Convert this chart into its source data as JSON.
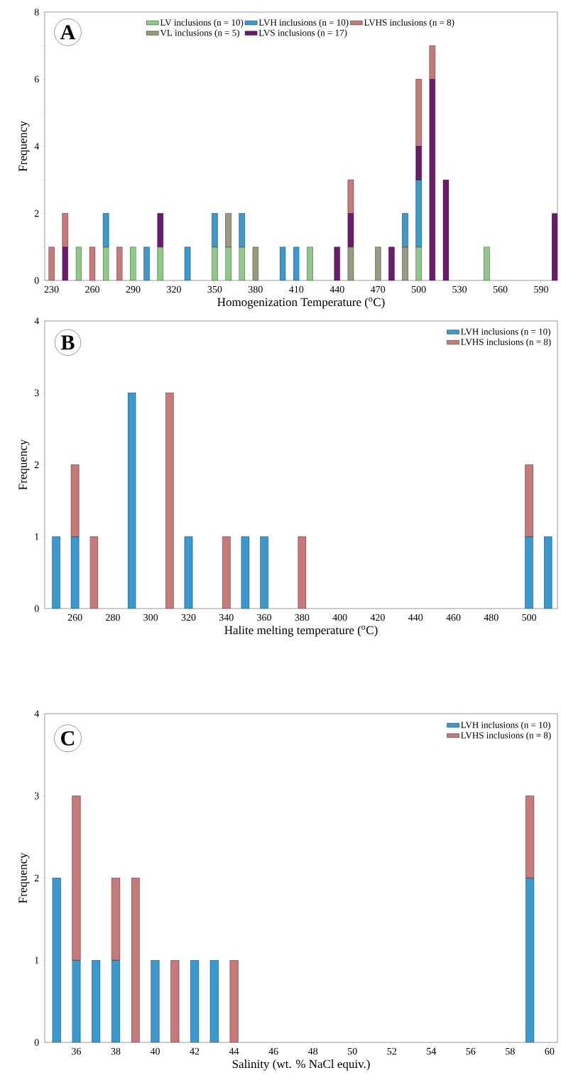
{
  "chart_data": [
    {
      "type": "bar",
      "stacked": true,
      "annotations": [
        "A"
      ],
      "xlabel": "Homogenization Temperature ($^{o}$C)",
      "ylabel": "Frequency",
      "legend": "top",
      "x": [
        230,
        240,
        250,
        260,
        270,
        280,
        290,
        300,
        310,
        330,
        350,
        360,
        370,
        380,
        400,
        410,
        420,
        440,
        450,
        470,
        480,
        490,
        500,
        510,
        520,
        550,
        600
      ],
      "xlim": [
        225,
        602
      ],
      "xticks": [
        230,
        260,
        290,
        320,
        350,
        380,
        410,
        440,
        470,
        500,
        530,
        560,
        590
      ],
      "ylim": [
        0,
        8
      ],
      "yticks": [
        0,
        {
          "value": 1,
          "label": null
        },
        2,
        {
          "value": 3,
          "label": null
        },
        4,
        {
          "value": 5,
          "label": null
        },
        6,
        {
          "value": 7,
          "label": null
        },
        8
      ],
      "series": [
        {
          "name": "LV inclusions (n = 10)",
          "color": "#8fc98a",
          "values": [
            null,
            null,
            1,
            null,
            1,
            null,
            1,
            null,
            1,
            null,
            1,
            1,
            1,
            null,
            null,
            null,
            1,
            null,
            null,
            null,
            null,
            null,
            1,
            null,
            null,
            1,
            null
          ]
        },
        {
          "name": "VL inclusions (n = 5)",
          "color": "#9a9a80",
          "values": [
            null,
            null,
            null,
            null,
            null,
            null,
            null,
            null,
            null,
            null,
            null,
            1,
            null,
            1,
            null,
            null,
            null,
            null,
            1,
            1,
            null,
            1,
            null,
            null,
            null,
            null,
            null
          ]
        },
        {
          "name": "LVH inclusions (n = 10)",
          "color": "#3a9ad0",
          "values": [
            null,
            null,
            null,
            null,
            1,
            null,
            null,
            1,
            null,
            1,
            1,
            null,
            1,
            null,
            1,
            1,
            null,
            null,
            null,
            null,
            null,
            1,
            2,
            null,
            null,
            null,
            null
          ]
        },
        {
          "name": "LVS inclusions (n = 17)",
          "color": "#6a1b6e",
          "values": [
            null,
            1,
            null,
            null,
            null,
            null,
            null,
            null,
            1,
            null,
            null,
            null,
            null,
            null,
            null,
            null,
            null,
            1,
            1,
            null,
            1,
            null,
            1,
            6,
            3,
            null,
            2
          ]
        },
        {
          "name": "LVHS inclusions (n = 8)",
          "color": "#c87a7a",
          "values": [
            1,
            1,
            null,
            1,
            null,
            1,
            null,
            null,
            null,
            null,
            null,
            null,
            null,
            null,
            null,
            null,
            null,
            null,
            1,
            null,
            null,
            null,
            2,
            1,
            null,
            null,
            null
          ]
        }
      ]
    },
    {
      "type": "bar",
      "stacked": true,
      "annotations": [
        "B"
      ],
      "xlabel": "Halite melting temperature ($^{o}$C)",
      "ylabel": "Frequency",
      "legend": "top right",
      "x": [
        250,
        260,
        270,
        290,
        310,
        320,
        340,
        350,
        360,
        380,
        500,
        510
      ],
      "xlim": [
        244,
        515
      ],
      "xticks": [
        260,
        280,
        300,
        320,
        340,
        360,
        380,
        400,
        420,
        440,
        460,
        480,
        500
      ],
      "ylim": [
        0,
        4
      ],
      "yticks": [
        0,
        1,
        2,
        3,
        4
      ],
      "series": [
        {
          "name": "LVH inclusions (n = 10)",
          "color": "#3a9ad0",
          "values": [
            1,
            1,
            null,
            3,
            null,
            1,
            null,
            1,
            1,
            null,
            1,
            1
          ]
        },
        {
          "name": "LVHS inclusions (n = 8)",
          "color": "#c87a7a",
          "values": [
            null,
            1,
            1,
            null,
            3,
            null,
            1,
            null,
            null,
            1,
            1,
            null
          ]
        }
      ]
    },
    {
      "type": "bar",
      "stacked": true,
      "annotations": [
        "C"
      ],
      "xlabel": "Salinity (wt. % NaCl equiv.)",
      "ylabel": "Frequency",
      "legend": "top right",
      "x": [
        35,
        36,
        37,
        38,
        39,
        40,
        41,
        42,
        43,
        44,
        59
      ],
      "xlim": [
        34.4,
        60.4
      ],
      "xticks": [
        36,
        38,
        40,
        42,
        44,
        46,
        48,
        50,
        52,
        54,
        56,
        58,
        60
      ],
      "ylim": [
        0,
        4
      ],
      "yticks": [
        0,
        1,
        2,
        3,
        4
      ],
      "series": [
        {
          "name": "LVH inclusions (n = 10)",
          "color": "#3a9ad0",
          "values": [
            2,
            1,
            1,
            1,
            null,
            1,
            null,
            1,
            1,
            null,
            2
          ]
        },
        {
          "name": "LVHS inclusions (n = 8)",
          "color": "#c87a7a",
          "values": [
            null,
            2,
            null,
            1,
            2,
            null,
            1,
            null,
            null,
            1,
            1
          ]
        }
      ]
    }
  ]
}
